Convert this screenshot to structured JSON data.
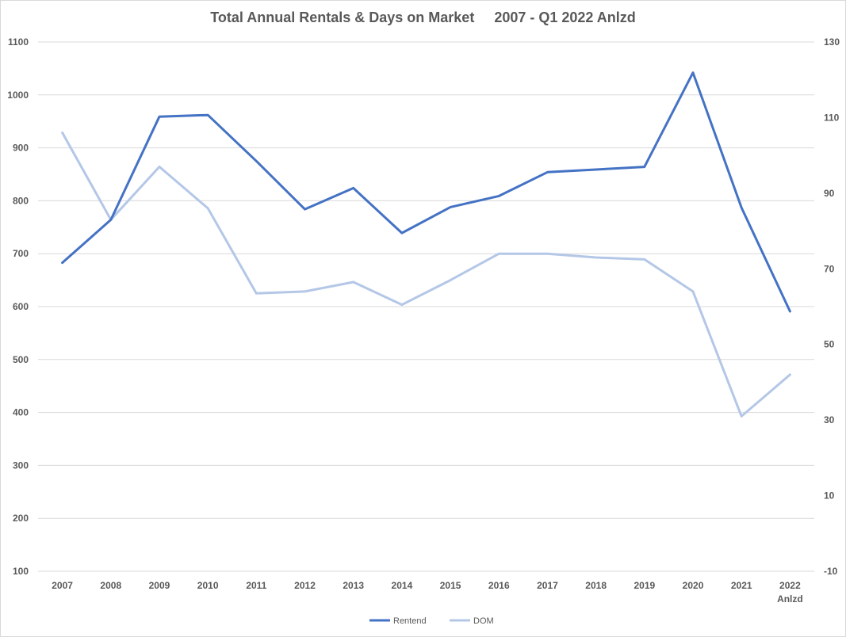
{
  "chart_data": {
    "type": "line",
    "title": "Total Annual Rentals & Days on Market     2007 - Q1 2022 Anlzd",
    "categories": [
      "2007",
      "2008",
      "2009",
      "2010",
      "2011",
      "2012",
      "2013",
      "2014",
      "2015",
      "2016",
      "2017",
      "2018",
      "2019",
      "2020",
      "2021",
      "2022\nAnlzd"
    ],
    "y_left": {
      "min": 100,
      "max": 1100,
      "step": 100,
      "ticks": [
        "100",
        "200",
        "300",
        "400",
        "500",
        "600",
        "700",
        "800",
        "900",
        "1000",
        "1100"
      ]
    },
    "y_right": {
      "min": -10,
      "max": 130,
      "step": 20,
      "ticks": [
        "-10",
        "10",
        "30",
        "50",
        "70",
        "90",
        "110",
        "130"
      ]
    },
    "grid": true,
    "legend_position": "bottom",
    "series": [
      {
        "name": "Rentend",
        "axis": "left",
        "color": "#4472c4",
        "values": [
          683,
          764,
          959,
          962,
          875,
          784,
          824,
          739,
          788,
          809,
          854,
          859,
          864,
          1042,
          787,
          591
        ]
      },
      {
        "name": "DOM",
        "axis": "right",
        "color": "#b4c7e7",
        "values": [
          106,
          83,
          97,
          86,
          63.5,
          64,
          66.5,
          60.5,
          67,
          74,
          74,
          73,
          72.5,
          64,
          31,
          42
        ]
      }
    ]
  }
}
